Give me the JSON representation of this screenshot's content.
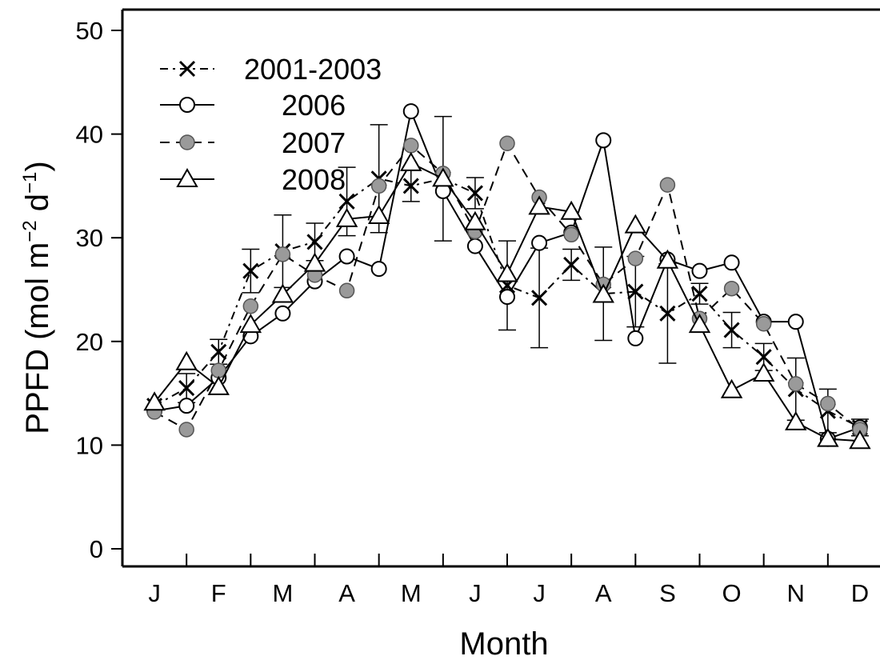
{
  "chart_data": {
    "type": "line",
    "xlabel": "Month",
    "ylabel": {
      "base": "PPFD (mol m",
      "sup1": "−2",
      "mid": " d",
      "sup2": "−1",
      "end": ")"
    },
    "ylim": [
      0,
      50
    ],
    "yticks": [
      0,
      10,
      20,
      30,
      40,
      50
    ],
    "xlim": [
      0,
      12
    ],
    "month_labels": [
      "J",
      "F",
      "M",
      "A",
      "M",
      "J",
      "J",
      "A",
      "S",
      "O",
      "N",
      "D"
    ],
    "legend_position": "top-left",
    "series": [
      {
        "name": "2001-2003",
        "marker": "x",
        "line": "dash-dot",
        "x": [
          0.5,
          1.0,
          1.5,
          2.0,
          2.5,
          3.0,
          3.5,
          4.0,
          4.5,
          5.0,
          5.5,
          6.0,
          6.5,
          7.0,
          7.5,
          8.0,
          8.5,
          9.0,
          9.5,
          10.0,
          10.5,
          11.0,
          11.5
        ],
        "y": [
          13.8,
          15.5,
          19.0,
          26.8,
          28.7,
          29.6,
          33.5,
          35.7,
          35.0,
          35.7,
          34.3,
          25.4,
          24.2,
          27.4,
          24.6,
          24.8,
          22.7,
          24.6,
          21.1,
          18.5,
          15.4,
          13.3,
          11.7
        ],
        "err": [
          null,
          1.4,
          1.2,
          2.1,
          3.5,
          1.8,
          3.3,
          5.2,
          1.5,
          6.0,
          1.5,
          4.3,
          4.8,
          1.5,
          4.5,
          3.4,
          4.8,
          1.0,
          1.7,
          1.3,
          3.0,
          2.1,
          0.8
        ]
      },
      {
        "name": "2006",
        "marker": "open-circle",
        "line": "solid",
        "x": [
          0.5,
          1.0,
          1.5,
          2.0,
          2.5,
          3.0,
          3.5,
          4.0,
          4.5,
          5.0,
          5.5,
          6.0,
          6.5,
          7.0,
          7.5,
          8.0,
          8.5,
          9.0,
          9.5,
          10.0,
          10.5,
          11.0,
          11.5
        ],
        "y": [
          13.3,
          13.8,
          16.5,
          20.5,
          22.7,
          25.8,
          28.2,
          27.0,
          42.2,
          34.5,
          29.2,
          24.3,
          29.5,
          30.5,
          39.4,
          20.3,
          27.9,
          26.8,
          27.6,
          21.9,
          21.9,
          10.6,
          11.7
        ],
        "err": null
      },
      {
        "name": "2007",
        "marker": "gray-circle",
        "line": "dashed",
        "x": [
          0.5,
          1.0,
          1.5,
          2.0,
          2.5,
          3.0,
          3.5,
          4.0,
          4.5,
          5.0,
          5.5,
          6.0,
          6.5,
          7.0,
          7.5,
          8.0,
          8.5,
          9.0,
          9.5,
          10.0,
          10.5,
          11.0,
          11.5
        ],
        "y": [
          13.2,
          11.5,
          17.2,
          23.4,
          28.4,
          26.4,
          24.9,
          35.0,
          38.9,
          36.2,
          30.6,
          39.1,
          33.9,
          30.3,
          25.5,
          28.0,
          35.1,
          22.2,
          25.1,
          21.7,
          15.9,
          14.0,
          11.5
        ],
        "err": null
      },
      {
        "name": "2008",
        "marker": "open-triangle",
        "line": "solid",
        "x": [
          0.5,
          1.0,
          1.5,
          2.0,
          2.5,
          3.0,
          3.5,
          4.0,
          4.5,
          5.0,
          5.5,
          6.0,
          6.5,
          7.0,
          7.5,
          8.0,
          8.5,
          9.0,
          9.5,
          10.0,
          10.5,
          11.0,
          11.5
        ],
        "y": [
          14.1,
          18.0,
          15.6,
          21.6,
          24.5,
          27.5,
          31.8,
          32.1,
          37.2,
          35.7,
          31.5,
          26.5,
          33.0,
          32.5,
          24.5,
          31.2,
          27.8,
          21.6,
          15.3,
          16.9,
          12.2,
          10.6,
          10.4
        ],
        "err": null
      }
    ]
  }
}
